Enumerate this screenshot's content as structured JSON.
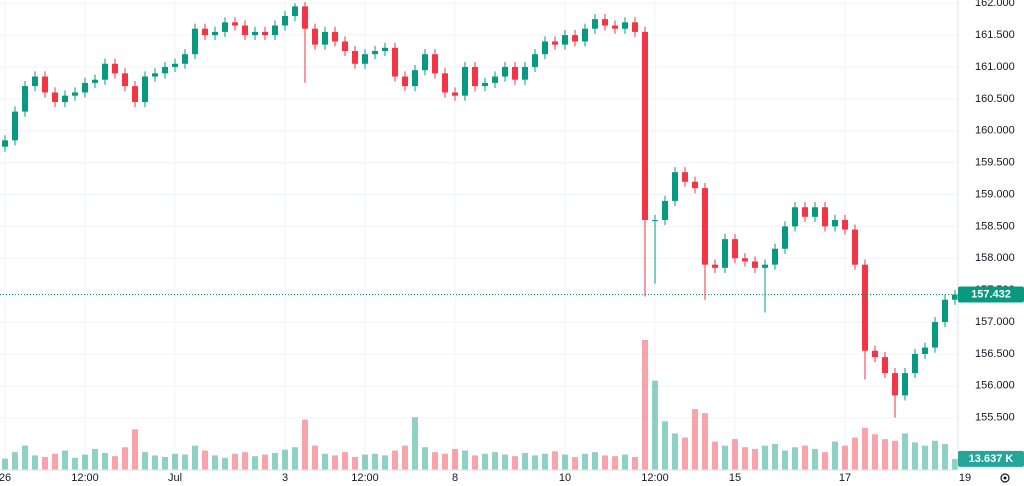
{
  "chart_data": {
    "type": "candlestick",
    "up_color": "#089981",
    "down_color": "#f23645",
    "grid": true,
    "x": [
      0,
      1,
      2,
      3,
      4,
      5,
      6,
      7,
      8,
      9,
      10,
      11,
      12,
      13,
      14,
      15,
      16,
      17,
      18,
      19,
      20,
      21,
      22,
      23,
      24,
      25,
      26,
      27,
      28,
      29,
      30,
      31,
      32,
      33,
      34,
      35,
      36,
      37,
      38,
      39,
      40,
      41,
      42,
      43,
      44,
      45,
      46,
      47,
      48,
      49,
      50,
      51,
      52,
      53,
      54,
      55,
      56,
      57,
      58,
      59,
      60,
      61,
      62,
      63,
      64,
      65,
      66,
      67,
      68,
      69,
      70,
      71,
      72,
      73,
      74,
      75,
      76,
      77,
      78,
      79,
      80,
      81,
      82,
      83,
      84,
      85,
      86,
      87,
      88,
      89,
      90,
      91,
      92,
      93,
      94,
      95
    ],
    "xlim": [
      -0.5,
      95.3
    ],
    "xticks": [
      {
        "value": 0,
        "label": "26"
      },
      {
        "value": 8,
        "label": "12:00"
      },
      {
        "value": 17,
        "label": "Jul"
      },
      {
        "value": 28,
        "label": "3"
      },
      {
        "value": 36,
        "label": "12:00"
      },
      {
        "value": 45,
        "label": "8"
      },
      {
        "value": 56,
        "label": "10"
      },
      {
        "value": 65,
        "label": "12:00"
      },
      {
        "value": 73,
        "label": "15"
      },
      {
        "value": 84,
        "label": "17"
      },
      {
        "value": 96,
        "label": "19"
      }
    ],
    "ylim": [
      154.68,
      162.05
    ],
    "yticks": [
      {
        "value": 155.5,
        "label": "155.500"
      },
      {
        "value": 156,
        "label": "156.000"
      },
      {
        "value": 156.5,
        "label": "156.500"
      },
      {
        "value": 157,
        "label": "157.000"
      },
      {
        "value": 157.5,
        "label": "157.500"
      },
      {
        "value": 158,
        "label": "158.000"
      },
      {
        "value": 158.5,
        "label": "158.500"
      },
      {
        "value": 159,
        "label": "159.000"
      },
      {
        "value": 159.5,
        "label": "159.500"
      },
      {
        "value": 160,
        "label": "160.000"
      },
      {
        "value": 160.5,
        "label": "160.500"
      },
      {
        "value": 161,
        "label": "161.000"
      },
      {
        "value": 161.5,
        "label": "161.500"
      },
      {
        "value": 162,
        "label": "162.000"
      }
    ],
    "open": [
      159.75,
      159.85,
      160.3,
      160.7,
      160.85,
      160.6,
      160.45,
      160.55,
      160.6,
      160.75,
      160.8,
      161.05,
      160.9,
      160.7,
      160.45,
      160.85,
      160.9,
      161.0,
      161.05,
      161.2,
      161.6,
      161.5,
      161.55,
      161.7,
      161.65,
      161.5,
      161.55,
      161.5,
      161.65,
      161.8,
      161.95,
      161.6,
      161.35,
      161.55,
      161.4,
      161.25,
      161.05,
      161.2,
      161.25,
      161.3,
      160.85,
      160.7,
      160.95,
      161.2,
      160.9,
      160.6,
      160.55,
      161.0,
      160.7,
      160.75,
      160.85,
      161.0,
      160.8,
      161.0,
      161.2,
      161.4,
      161.35,
      161.5,
      161.4,
      161.6,
      161.75,
      161.65,
      161.6,
      161.7,
      161.55,
      158.6,
      158.6,
      158.9,
      159.35,
      159.2,
      159.1,
      157.9,
      157.85,
      158.3,
      158.0,
      157.95,
      157.85,
      157.9,
      158.15,
      158.5,
      158.8,
      158.65,
      158.8,
      158.5,
      158.6,
      158.45,
      157.9,
      156.55,
      156.45,
      156.2,
      155.85,
      156.2,
      156.5,
      156.6,
      157.0,
      157.35
    ],
    "high": [
      159.93,
      160.38,
      160.78,
      160.93,
      160.93,
      160.68,
      160.63,
      160.68,
      160.83,
      160.88,
      161.13,
      161.13,
      160.98,
      160.78,
      160.93,
      160.98,
      161.08,
      161.13,
      161.28,
      161.68,
      161.68,
      161.63,
      161.78,
      161.78,
      161.73,
      161.63,
      161.63,
      161.73,
      161.88,
      162.0,
      162.02,
      161.68,
      161.63,
      161.63,
      161.48,
      161.33,
      161.28,
      161.33,
      161.38,
      161.38,
      160.93,
      161.03,
      161.28,
      161.28,
      160.98,
      160.68,
      161.08,
      161.08,
      160.83,
      160.93,
      161.08,
      161.08,
      161.08,
      161.28,
      161.48,
      161.48,
      161.58,
      161.58,
      161.68,
      161.83,
      161.83,
      161.73,
      161.78,
      161.78,
      161.63,
      158.68,
      158.98,
      159.43,
      159.43,
      159.28,
      159.18,
      157.98,
      158.38,
      158.38,
      158.08,
      158.03,
      157.98,
      158.23,
      158.58,
      158.88,
      158.88,
      158.88,
      158.88,
      158.68,
      158.68,
      158.53,
      157.98,
      156.63,
      156.53,
      156.28,
      156.28,
      156.58,
      156.68,
      157.08,
      157.43,
      157.5
    ],
    "low": [
      159.67,
      159.77,
      160.22,
      160.62,
      160.52,
      160.37,
      160.37,
      160.47,
      160.52,
      160.67,
      160.72,
      160.82,
      160.62,
      160.37,
      160.37,
      160.77,
      160.82,
      160.92,
      160.97,
      161.12,
      161.42,
      161.42,
      161.47,
      161.57,
      161.42,
      161.42,
      161.42,
      161.42,
      161.57,
      161.72,
      160.75,
      161.27,
      161.27,
      161.32,
      161.17,
      160.97,
      160.97,
      161.12,
      161.17,
      160.77,
      160.62,
      160.62,
      160.87,
      160.82,
      160.52,
      160.47,
      160.47,
      160.62,
      160.62,
      160.67,
      160.77,
      160.72,
      160.72,
      160.92,
      161.12,
      161.27,
      161.27,
      161.32,
      161.32,
      161.52,
      161.57,
      161.52,
      161.52,
      161.47,
      157.4,
      157.6,
      158.52,
      158.82,
      159.12,
      159.02,
      157.35,
      157.77,
      157.77,
      157.92,
      157.87,
      157.77,
      157.15,
      157.82,
      158.07,
      158.42,
      158.57,
      158.57,
      158.42,
      158.42,
      158.37,
      157.82,
      156.1,
      156.37,
      156.12,
      155.5,
      155.77,
      156.12,
      156.42,
      156.52,
      156.92,
      157.27
    ],
    "close": [
      159.85,
      160.3,
      160.7,
      160.85,
      160.6,
      160.45,
      160.55,
      160.6,
      160.75,
      160.8,
      161.05,
      160.9,
      160.7,
      160.45,
      160.85,
      160.9,
      161.0,
      161.05,
      161.2,
      161.6,
      161.5,
      161.55,
      161.7,
      161.65,
      161.5,
      161.55,
      161.5,
      161.65,
      161.8,
      161.95,
      161.6,
      161.35,
      161.55,
      161.4,
      161.25,
      161.05,
      161.2,
      161.25,
      161.3,
      160.85,
      160.7,
      160.95,
      161.2,
      160.9,
      160.6,
      160.55,
      161.0,
      160.7,
      160.75,
      160.85,
      161.0,
      160.8,
      161.0,
      161.2,
      161.4,
      161.35,
      161.5,
      161.4,
      161.6,
      161.75,
      161.65,
      161.6,
      161.7,
      161.55,
      158.6,
      158.6,
      158.9,
      159.35,
      159.2,
      159.1,
      157.9,
      157.85,
      158.3,
      158.0,
      157.95,
      157.85,
      157.9,
      158.15,
      158.5,
      158.8,
      158.65,
      158.8,
      158.5,
      158.6,
      158.45,
      157.9,
      156.55,
      156.45,
      156.2,
      155.85,
      156.2,
      156.5,
      156.6,
      157.0,
      157.35,
      157.432
    ],
    "volume": [
      14,
      22,
      30,
      18,
      16,
      20,
      24,
      15,
      19,
      26,
      21,
      17,
      28,
      50,
      22,
      18,
      16,
      20,
      19,
      30,
      24,
      18,
      15,
      20,
      22,
      17,
      19,
      21,
      25,
      28,
      62,
      30,
      20,
      18,
      22,
      16,
      19,
      20,
      18,
      24,
      30,
      65,
      28,
      22,
      20,
      26,
      24,
      18,
      20,
      22,
      19,
      17,
      21,
      18,
      20,
      23,
      19,
      16,
      20,
      22,
      18,
      17,
      19,
      16,
      160,
      110,
      60,
      45,
      40,
      75,
      70,
      35,
      30,
      38,
      28,
      26,
      30,
      32,
      24,
      28,
      30,
      26,
      22,
      35,
      30,
      40,
      52,
      44,
      38,
      36,
      45,
      34,
      30,
      36,
      32,
      13.637
    ],
    "volume_label": "13.637 K"
  }
}
